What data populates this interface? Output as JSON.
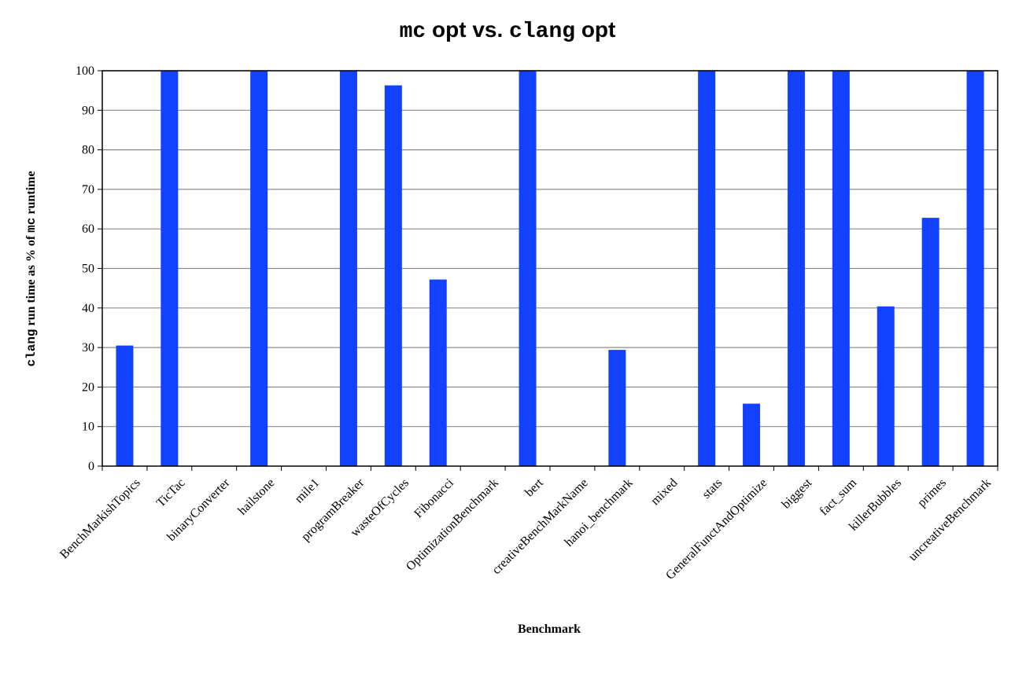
{
  "title": {
    "part1": "mc",
    "part2": " opt vs. ",
    "part3": "clang",
    "part4": " opt"
  },
  "chart_data": {
    "type": "bar",
    "title": "mc opt vs. clang opt",
    "xlabel": "Benchmark",
    "ylabel": {
      "part1": "clang",
      "part2": " run time as % of ",
      "part3": "mc",
      "part4": " runtime"
    },
    "ylim": [
      0,
      100
    ],
    "yticks": [
      0,
      10,
      20,
      30,
      40,
      50,
      60,
      70,
      80,
      90,
      100
    ],
    "grid": true,
    "bar_color": "#1241ff",
    "categories": [
      "BenchMarkishTopics",
      "TicTac",
      "binaryConverter",
      "hailstone",
      "mile1",
      "programBreaker",
      "wasteOfCycles",
      "Fibonacci",
      "OptimizationBenchmark",
      "bert",
      "creativeBenchMarkName",
      "hanoi_benchmark",
      "mixed",
      "stats",
      "GeneralFunctAndOptimize",
      "biggest",
      "fact_sum",
      "killerBubbles",
      "primes",
      "uncreativeBenchmark"
    ],
    "values": [
      30.5,
      100,
      0,
      100,
      0,
      100,
      96.3,
      47.2,
      0,
      100,
      0,
      29.4,
      0,
      100,
      15.8,
      100,
      100,
      40.4,
      62.8,
      100
    ]
  }
}
